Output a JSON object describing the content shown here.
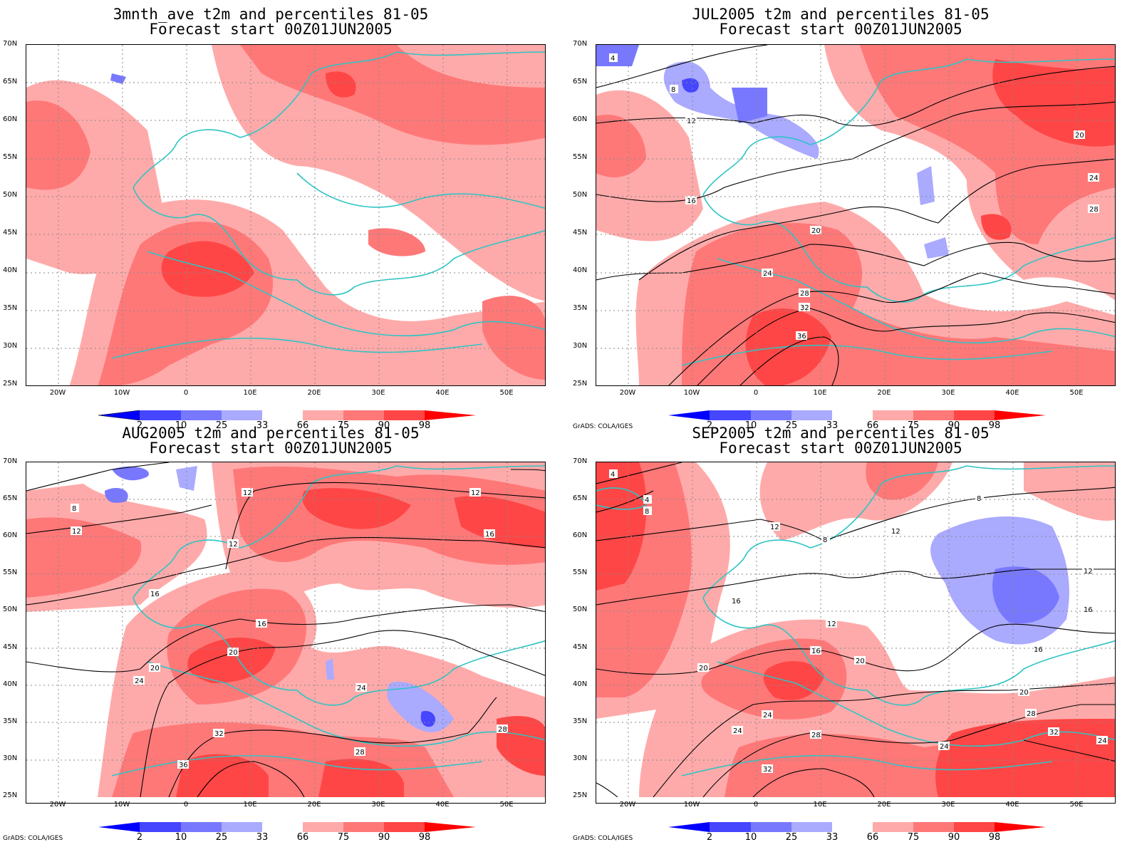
{
  "panels": [
    {
      "title1": "3mnth_ave t2m and percentiles 81-05",
      "title2": "Forecast start 00Z01JUN2005",
      "credit": "",
      "contour_labels": []
    },
    {
      "title1": "JUL2005 t2m and percentiles 81-05",
      "title2": "Forecast start 00Z01JUN2005",
      "credit": "GrADS: COLA/IGES",
      "contour_labels": [
        "4",
        "8",
        "12",
        "16",
        "20",
        "24",
        "28",
        "32",
        "36"
      ]
    },
    {
      "title1": "AUG2005 t2m and percentiles 81-05",
      "title2": "Forecast start 00Z01JUN2005",
      "credit": "GrADS: COLA/IGES",
      "contour_labels": [
        "8",
        "12",
        "16",
        "20",
        "24",
        "28",
        "32",
        "36"
      ]
    },
    {
      "title1": "SEP2005 t2m and percentiles 81-05",
      "title2": "Forecast start 00Z01JUN2005",
      "credit": "GrADS: COLA/IGES",
      "contour_labels": [
        "4",
        "8",
        "12",
        "16",
        "20",
        "24",
        "28",
        "32"
      ]
    }
  ],
  "lat_labels": [
    "70N",
    "65N",
    "60N",
    "55N",
    "50N",
    "45N",
    "40N",
    "35N",
    "30N",
    "25N"
  ],
  "lon_labels": [
    "20W",
    "10W",
    "0",
    "10E",
    "20E",
    "30E",
    "40E",
    "50E"
  ],
  "colorbar": {
    "labels": [
      "2",
      "10",
      "25",
      "33",
      "66",
      "75",
      "90",
      "98"
    ],
    "colors": [
      "#0000ff",
      "#4646ff",
      "#7878ff",
      "#aaaaff",
      "#ffffff",
      "#ffaaaa",
      "#ff7878",
      "#ff4646",
      "#ff0000"
    ]
  },
  "colors": {
    "coast": "#2ec4c4",
    "contour": "#000000",
    "light_red": "#ffaaaa",
    "mid_red": "#ff7878",
    "strong_red": "#ff4646",
    "light_blue": "#aaaaff",
    "mid_blue": "#7878ff"
  }
}
